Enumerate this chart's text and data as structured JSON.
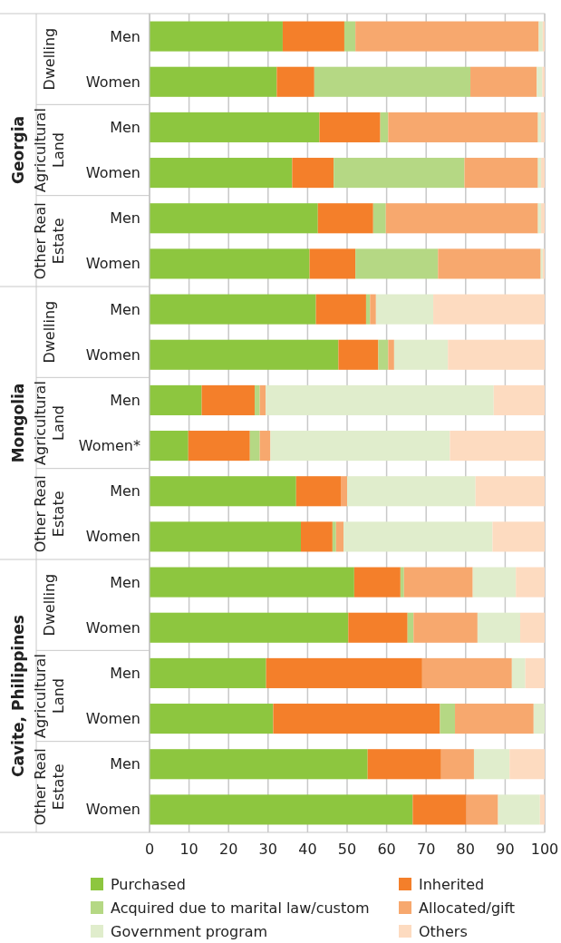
{
  "chart_data": {
    "type": "bar",
    "orientation": "horizontal",
    "stacked": true,
    "categories": [
      "Men",
      "Women",
      "Men",
      "Women",
      "Men",
      "Women",
      "Men",
      "Women",
      "Men",
      "Women*",
      "Men",
      "Women",
      "Men",
      "Women",
      "Men",
      "Women",
      "Men",
      "Women"
    ],
    "annotations": [
      "Georgia",
      "Dwelling",
      "Agricultural Land",
      "Other Real Estate",
      "Mongolia",
      "Dwelling",
      "Agricultural Land",
      "Other Real Estate",
      "Cavite, Philippines",
      "Dwelling",
      "Agricultural Land",
      "Other Real Estate"
    ],
    "series": [
      {
        "name": "Purchased",
        "color": "#8dc63f",
        "values": [
          33.7,
          32.2,
          43.0,
          36.1,
          42.6,
          40.5,
          42.1,
          47.8,
          13.2,
          9.8,
          37.1,
          38.3,
          51.8,
          50.3,
          29.5,
          31.3,
          55.2,
          66.6
        ]
      },
      {
        "name": "Inherited",
        "color": "#f47f2a",
        "values": [
          15.6,
          9.5,
          15.4,
          10.5,
          14.0,
          11.6,
          12.7,
          10.1,
          13.4,
          15.6,
          11.3,
          8.0,
          11.7,
          15.0,
          39.5,
          42.2,
          18.6,
          13.6
        ]
      },
      {
        "name": "Acquired due to marital law/custom",
        "color": "#b5d884",
        "values": [
          2.8,
          39.5,
          2.0,
          33.1,
          3.2,
          20.9,
          1.0,
          2.5,
          1.3,
          2.5,
          0,
          0.9,
          0.9,
          1.5,
          0,
          3.8,
          0,
          0
        ]
      },
      {
        "name": "Allocated/gift",
        "color": "#f7a86e",
        "values": [
          46.4,
          16.8,
          37.9,
          18.6,
          38.5,
          26.0,
          1.5,
          1.5,
          1.5,
          2.7,
          1.6,
          1.9,
          17.4,
          16.2,
          22.7,
          19.9,
          8.3,
          8.0
        ]
      },
      {
        "name": "Government program",
        "color": "#e0edcc",
        "values": [
          1.0,
          1.4,
          0.8,
          0.8,
          0.8,
          0.5,
          14.5,
          13.6,
          57.7,
          45.4,
          32.5,
          37.7,
          10.9,
          10.8,
          3.4,
          2.8,
          9.0,
          10.6
        ]
      },
      {
        "name": "Others",
        "color": "#fddbc0",
        "values": [
          0.5,
          0.6,
          0.9,
          0.9,
          0.9,
          0.5,
          28.2,
          24.5,
          12.9,
          24.0,
          17.5,
          13.2,
          7.3,
          6.2,
          4.9,
          0,
          8.9,
          1.2
        ]
      }
    ],
    "xlim": [
      0,
      100
    ],
    "xticks": [
      0,
      10,
      20,
      30,
      40,
      50,
      60,
      70,
      80,
      90,
      100
    ],
    "grid": "x",
    "legend": "bottom"
  }
}
